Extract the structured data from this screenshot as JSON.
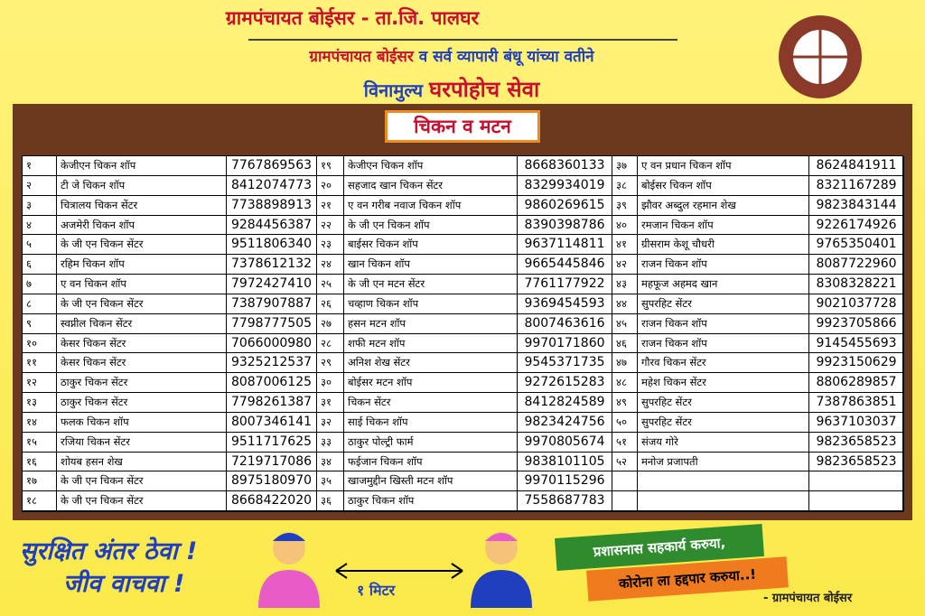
{
  "header": {
    "title": "ग्रामपंचायत बोईसर - ता.जि. पालघर",
    "subtitle_left": "ग्रामपंचायत बोईसर",
    "subtitle_right": "व सर्व व्यापारी बंधू यांच्या वतीने",
    "tagline_left": "विनामुल्य",
    "tagline_right": "घरपोहोच सेवा"
  },
  "section_title": "चिकन व मटन",
  "table": {
    "groups": [
      {
        "rows": [
          [
            "१",
            "केजीएन चिकन शॉप",
            "7767869563"
          ],
          [
            "२",
            "टी जे चिकन शॉप",
            "8412074773"
          ],
          [
            "३",
            "चित्रालय चिकन सेंटर",
            "7738898913"
          ],
          [
            "४",
            "अजमेरी चिकन शॉप",
            "9284456387"
          ],
          [
            "५",
            "के जी एन चिकन सेंटर",
            "9511806340"
          ],
          [
            "६",
            "रहिम चिकन शॉप",
            "7378612132"
          ],
          [
            "७",
            "ए वन चिकन शॉप",
            "7972427410"
          ],
          [
            "८",
            "के जी एन चिकन सेंटर",
            "7387907887"
          ],
          [
            "९",
            "स्वप्नील चिकन सेंटर",
            "7798777505"
          ],
          [
            "१०",
            "केसर चिकन सेंटर",
            "7066000980"
          ],
          [
            "११",
            "केसर चिकन सेंटर",
            "9325212537"
          ],
          [
            "१२",
            "ठाकुर चिकन सेंटर",
            "8087006125"
          ],
          [
            "१३",
            "ठाकुर चिकन सेंटर",
            "7798261387"
          ],
          [
            "१४",
            "फलक चिकन शॉप",
            "8007346141"
          ],
          [
            "१५",
            "रजिया चिकन सेंटर",
            "9511717625"
          ],
          [
            "१६",
            "शोयब हसन शेख",
            "7219717086"
          ],
          [
            "१७",
            "के जी एन चिकन सेंटर",
            "8975180970"
          ],
          [
            "१८",
            "के जी एन  चिकन सेंटर",
            "8668422020"
          ]
        ]
      },
      {
        "rows": [
          [
            "१९",
            "केजीएन चिकन शॉप",
            "8668360133"
          ],
          [
            "२०",
            "सहजाद खान चिकन सेंटर",
            "8329934019"
          ],
          [
            "२१",
            "ए वन गरीब नवाज चिकन शॉप",
            "9860269615"
          ],
          [
            "२२",
            "के जी एन चिकन शॉप",
            "8390398786"
          ],
          [
            "२३",
            "बाईसर चिकन शॉप",
            "9637114811"
          ],
          [
            "२४",
            "खान चिकन शॉप",
            "9665445846"
          ],
          [
            "२५",
            "के जी एन मटन सेंटर",
            "7761177922"
          ],
          [
            "२६",
            "चव्हाण चिकन शॉप",
            "9369454593"
          ],
          [
            "२७",
            "हसन मटन शॉप",
            "8007463616"
          ],
          [
            "२८",
            "शफी मटन शॉप",
            "9970171860"
          ],
          [
            "२९",
            "अनिश शेख सेंटर",
            "9545371735"
          ],
          [
            "३०",
            "बोईसर मटन शॉप",
            "9272615283"
          ],
          [
            "३१",
            "चिकन सेंटर",
            "8412824589"
          ],
          [
            "३२",
            "साई चिकन शॉप",
            "9823424756"
          ],
          [
            "३३",
            "ठाकुर पोल्ट्री फार्म",
            "9970805674"
          ],
          [
            "३४",
            "फईजान चिकन शॉप",
            "9838101105"
          ],
          [
            "३५",
            "खाजमुद्दीन खिस्ती मटन शॉप",
            "9970115296"
          ],
          [
            "३६",
            "ठाकुर चिकन शॉप",
            "7558687783"
          ]
        ]
      },
      {
        "rows": [
          [
            "३७",
            "ए वन प्रधान चिकन शॉप",
            "8624841911"
          ],
          [
            "३८",
            "बोईसर चिकन शॉप",
            "8321167289"
          ],
          [
            "३९",
            "झौवर अब्दुल रहमान शेख",
            "9823843144"
          ],
          [
            "४०",
            "रमजान चिकन शॉप",
            "9226174926"
          ],
          [
            "४१",
            "ग्रीसराम केशू चौधरी",
            "9765350401"
          ],
          [
            "४२",
            "राजन चिकन शॉप",
            "8087722960"
          ],
          [
            "४३",
            "महफूज अहमद खान",
            "8308328221"
          ],
          [
            "४४",
            "सुपरहिट सेंटर",
            "9021037728"
          ],
          [
            "४५",
            "राजन चिकन शॉप",
            "9923705866"
          ],
          [
            "४६",
            "राजन चिकन शॉप",
            "9145455693"
          ],
          [
            "४७",
            "गौरव चिकन सेंटर",
            "9923150629"
          ],
          [
            "४८",
            "महेश चिकन सेंटर",
            "8806289857"
          ],
          [
            "४९",
            "सुपरहिट सेंटर",
            "7387863851"
          ],
          [
            "५०",
            "सुपरहिट सेंटर",
            "9637103037"
          ],
          [
            "५१",
            "संजय गोरे",
            "9823658523"
          ],
          [
            "५२",
            "मनोज प्रजापती",
            "9823658523"
          ]
        ]
      }
    ]
  },
  "footer": {
    "slogan_1": "सुरक्षित अंतर ठेवा !",
    "slogan_2": "जीव वाचवा !",
    "distance": "१ मिटर",
    "banner_1": "प्रशासनास सहकार्य करुया,",
    "banner_2": "कोरोना ला हद्दपार करुया..!",
    "signature": "- ग्रामपंचायत बोईसर"
  }
}
